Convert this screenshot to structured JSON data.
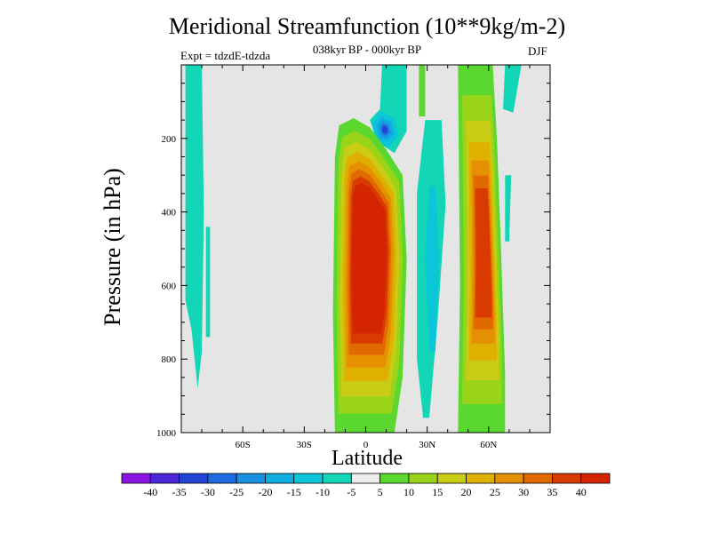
{
  "chart_data": {
    "type": "contour",
    "title": "Meridional Streamfunction (10**9kg/m-2)",
    "subtitle": "038kyr BP - 000kyr BP",
    "experiment_label": "Expt = tdzdE-tdzda",
    "season": "DJF",
    "xlabel": "Latitude",
    "ylabel": "Pressure (in hPa)",
    "x_range": [
      -90,
      90
    ],
    "y_range": [
      1000,
      0
    ],
    "x_ticks": [
      {
        "value": -60,
        "label": "60S"
      },
      {
        "value": -30,
        "label": "30S"
      },
      {
        "value": 0,
        "label": "0"
      },
      {
        "value": 30,
        "label": "30N"
      },
      {
        "value": 60,
        "label": "60N"
      }
    ],
    "y_ticks": [
      {
        "value": 200,
        "label": "200"
      },
      {
        "value": 400,
        "label": "400"
      },
      {
        "value": 600,
        "label": "600"
      },
      {
        "value": 800,
        "label": "800"
      },
      {
        "value": 1000,
        "label": "1000"
      }
    ],
    "features": [
      {
        "name": "equatorial positive cell",
        "lat_range": [
          -16,
          20
        ],
        "p_range": [
          1000,
          160
        ],
        "peak": 40
      },
      {
        "name": "northern midlatitude positive cell",
        "lat_range": [
          45,
          68
        ],
        "p_range": [
          1000,
          0
        ],
        "peak": 40
      },
      {
        "name": "upper tropospheric negative core",
        "lat_center": 10,
        "p_center": 180,
        "min": -30
      },
      {
        "name": "northern subtropical negative band",
        "lat_range": [
          25,
          45
        ],
        "p_range": [
          960,
          80
        ],
        "min": -15
      },
      {
        "name": "southern high-latitude negative band",
        "lat_range": [
          -87,
          -78
        ],
        "p_range": [
          880,
          0
        ],
        "min": -10
      }
    ],
    "colorbar": {
      "levels": [
        "-40",
        "-35",
        "-30",
        "-25",
        "-20",
        "-15",
        "-10",
        "-5",
        "5",
        "10",
        "15",
        "20",
        "25",
        "30",
        "35",
        "40"
      ],
      "colors": [
        "#8a14e4",
        "#4a26d8",
        "#2244d4",
        "#1e6ade",
        "#1990e0",
        "#10aee0",
        "#0ac6d8",
        "#12d6b6",
        "#ececec",
        "#5ad830",
        "#9ad418",
        "#c8cc14",
        "#e0b000",
        "#e49000",
        "#e06a00",
        "#d83a00",
        "#d42400"
      ]
    }
  },
  "colors": {
    "background": "#e5e5e5",
    "neg5": "#12d6b6",
    "neg10": "#0ac6d8",
    "neg15": "#10aee0",
    "neg20": "#1990e0",
    "neg25": "#1e6ade",
    "neg30": "#2244d4",
    "pos5": "#5ad830",
    "pos10": "#9ad418",
    "pos15": "#c8cc14",
    "pos20": "#e0b000",
    "pos25": "#e49000",
    "pos30": "#e06a00",
    "pos35": "#d83a00",
    "pos40": "#d42400"
  }
}
